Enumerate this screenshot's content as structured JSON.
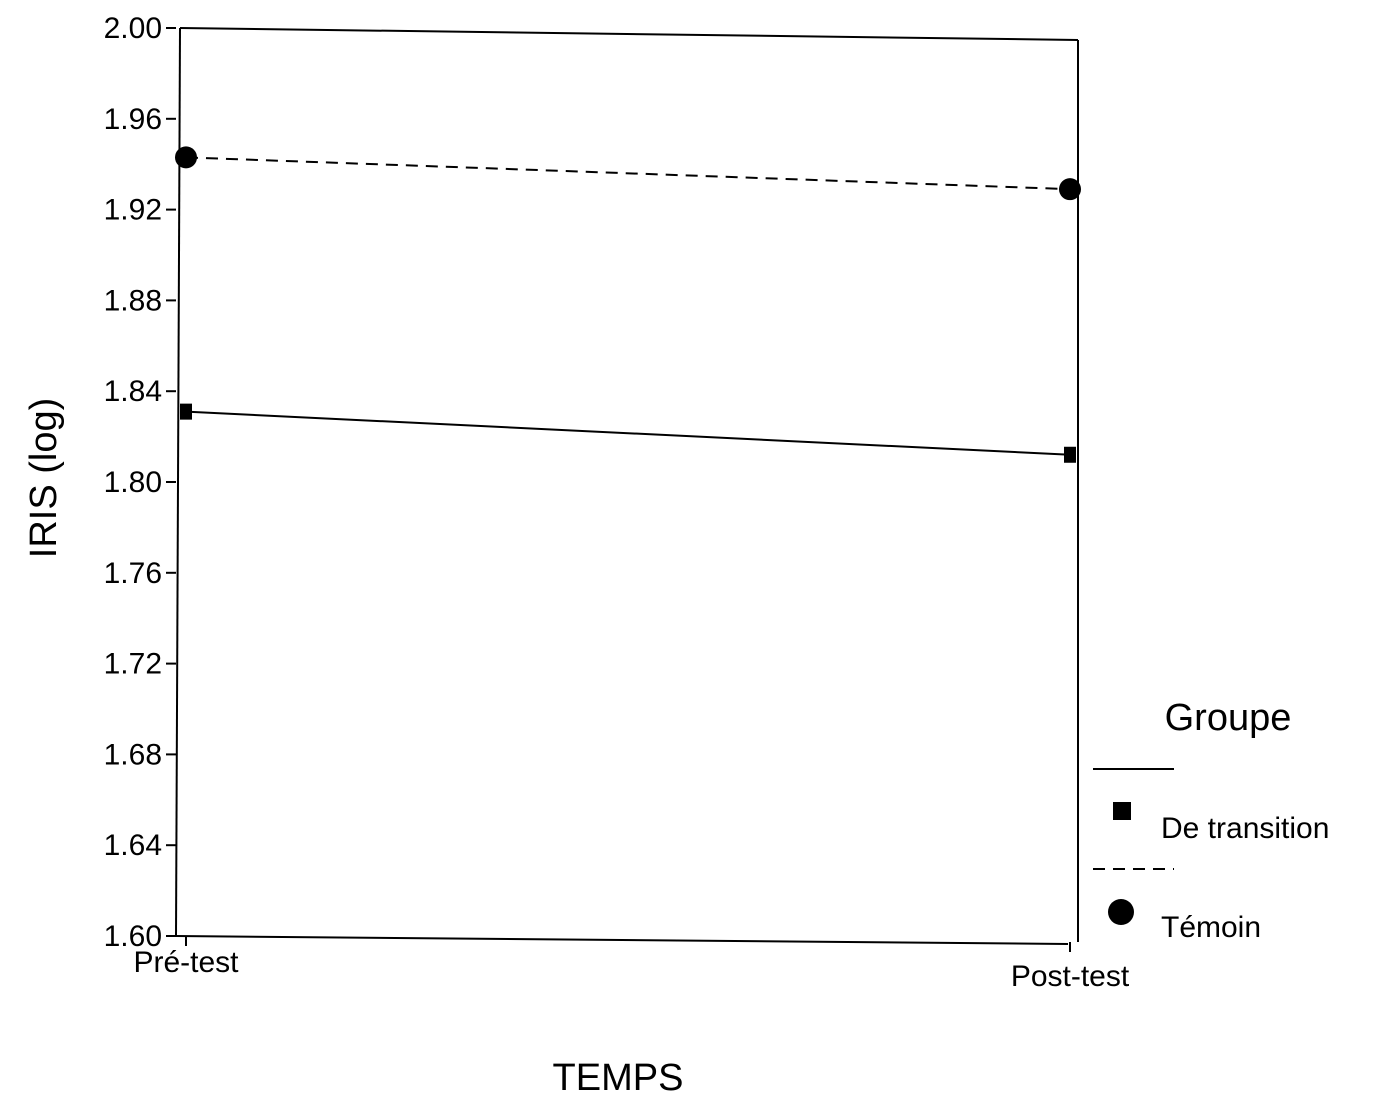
{
  "chart_data": {
    "type": "line",
    "title": "",
    "xlabel": "TEMPS",
    "ylabel": "IRIS (log)",
    "categories": [
      "Pré-test",
      "Post-test"
    ],
    "ylim": [
      1.6,
      2.0
    ],
    "yticks": [
      "1.60",
      "1.64",
      "1.68",
      "1.72",
      "1.76",
      "1.80",
      "1.84",
      "1.88",
      "1.92",
      "1.96",
      "2.00"
    ],
    "grid": false,
    "legend": {
      "title": "Groupe",
      "placement": "bottom-right"
    },
    "series": [
      {
        "name": "De transition",
        "values": [
          1.831,
          1.812
        ],
        "line_style": "solid",
        "marker": "square",
        "color": "#000000"
      },
      {
        "name": "Témoin",
        "values": [
          1.943,
          1.929
        ],
        "line_style": "dashed",
        "marker": "circle",
        "color": "#000000"
      }
    ]
  }
}
